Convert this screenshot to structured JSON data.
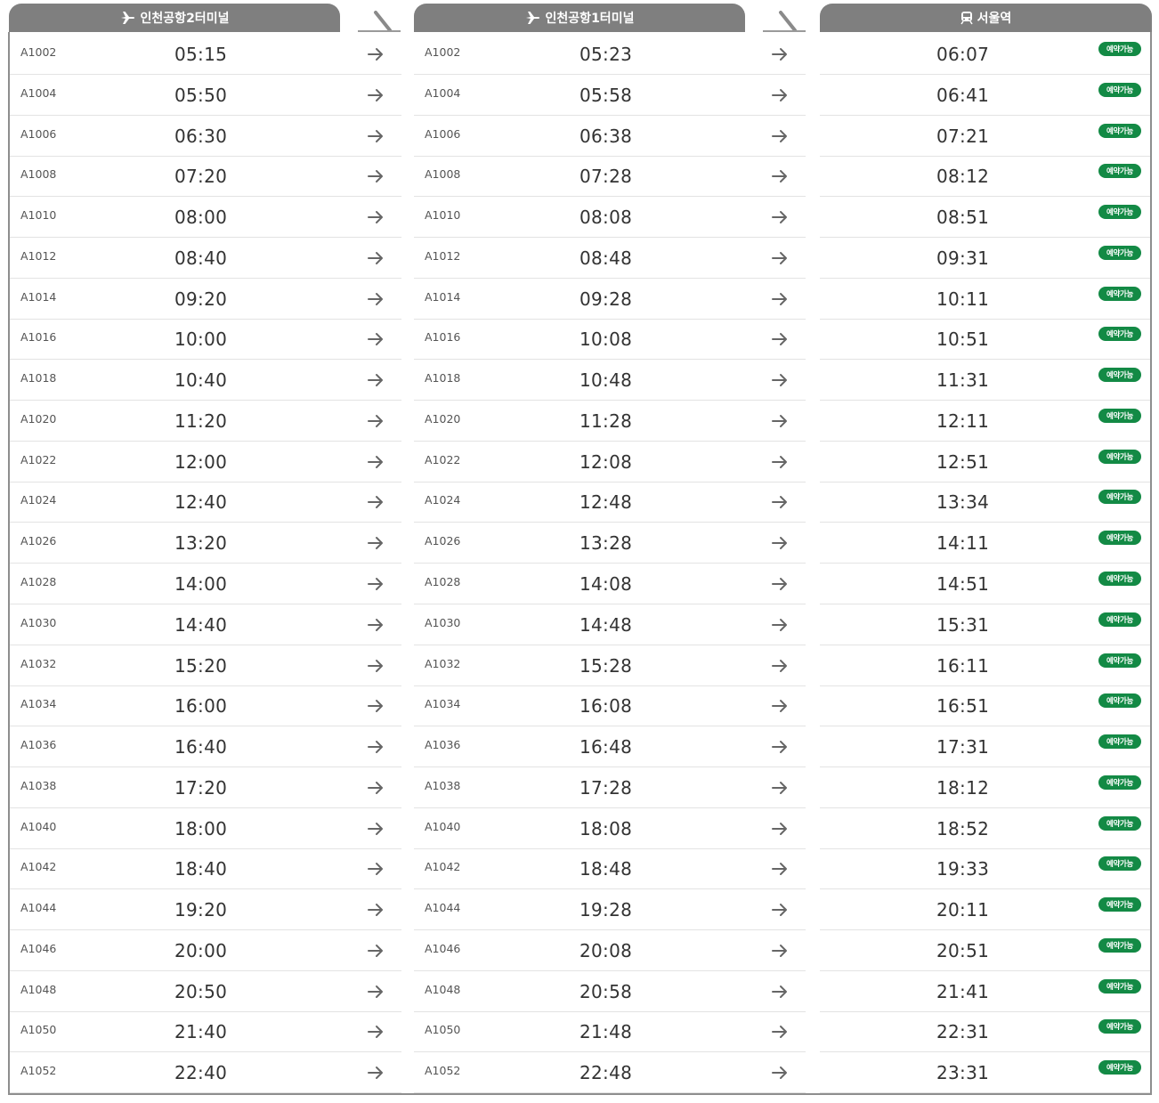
{
  "headers": [
    {
      "label": "인천공항2터미널",
      "icon": "airplane-icon"
    },
    {
      "label": "인천공항1터미널",
      "icon": "airplane-icon"
    },
    {
      "label": "서울역",
      "icon": "train-icon"
    }
  ],
  "badge_label": "예약가능",
  "colors": {
    "header_bg": "#7f7f7f",
    "badge_bg": "#138a45"
  },
  "rows": [
    {
      "train": "A1002",
      "t2": "05:15",
      "t1": "05:23",
      "seoul": "06:07"
    },
    {
      "train": "A1004",
      "t2": "05:50",
      "t1": "05:58",
      "seoul": "06:41"
    },
    {
      "train": "A1006",
      "t2": "06:30",
      "t1": "06:38",
      "seoul": "07:21"
    },
    {
      "train": "A1008",
      "t2": "07:20",
      "t1": "07:28",
      "seoul": "08:12"
    },
    {
      "train": "A1010",
      "t2": "08:00",
      "t1": "08:08",
      "seoul": "08:51"
    },
    {
      "train": "A1012",
      "t2": "08:40",
      "t1": "08:48",
      "seoul": "09:31"
    },
    {
      "train": "A1014",
      "t2": "09:20",
      "t1": "09:28",
      "seoul": "10:11"
    },
    {
      "train": "A1016",
      "t2": "10:00",
      "t1": "10:08",
      "seoul": "10:51"
    },
    {
      "train": "A1018",
      "t2": "10:40",
      "t1": "10:48",
      "seoul": "11:31"
    },
    {
      "train": "A1020",
      "t2": "11:20",
      "t1": "11:28",
      "seoul": "12:11"
    },
    {
      "train": "A1022",
      "t2": "12:00",
      "t1": "12:08",
      "seoul": "12:51"
    },
    {
      "train": "A1024",
      "t2": "12:40",
      "t1": "12:48",
      "seoul": "13:34"
    },
    {
      "train": "A1026",
      "t2": "13:20",
      "t1": "13:28",
      "seoul": "14:11"
    },
    {
      "train": "A1028",
      "t2": "14:00",
      "t1": "14:08",
      "seoul": "14:51"
    },
    {
      "train": "A1030",
      "t2": "14:40",
      "t1": "14:48",
      "seoul": "15:31"
    },
    {
      "train": "A1032",
      "t2": "15:20",
      "t1": "15:28",
      "seoul": "16:11"
    },
    {
      "train": "A1034",
      "t2": "16:00",
      "t1": "16:08",
      "seoul": "16:51"
    },
    {
      "train": "A1036",
      "t2": "16:40",
      "t1": "16:48",
      "seoul": "17:31"
    },
    {
      "train": "A1038",
      "t2": "17:20",
      "t1": "17:28",
      "seoul": "18:12"
    },
    {
      "train": "A1040",
      "t2": "18:00",
      "t1": "18:08",
      "seoul": "18:52"
    },
    {
      "train": "A1042",
      "t2": "18:40",
      "t1": "18:48",
      "seoul": "19:33"
    },
    {
      "train": "A1044",
      "t2": "19:20",
      "t1": "19:28",
      "seoul": "20:11"
    },
    {
      "train": "A1046",
      "t2": "20:00",
      "t1": "20:08",
      "seoul": "20:51"
    },
    {
      "train": "A1048",
      "t2": "20:50",
      "t1": "20:58",
      "seoul": "21:41"
    },
    {
      "train": "A1050",
      "t2": "21:40",
      "t1": "21:48",
      "seoul": "22:31"
    },
    {
      "train": "A1052",
      "t2": "22:40",
      "t1": "22:48",
      "seoul": "23:31"
    }
  ]
}
